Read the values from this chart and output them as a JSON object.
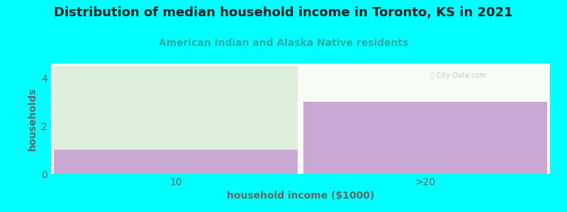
{
  "title": "Distribution of median household income in Toronto, KS in 2021",
  "subtitle": "American Indian and Alaska Native residents",
  "xlabel": "household income ($1000)",
  "ylabel": "households",
  "categories": [
    "10",
    ">20"
  ],
  "bar1_purple": 1,
  "bar1_green": 3.5,
  "bar2_purple": 3,
  "ylim": [
    0,
    4.6
  ],
  "yticks": [
    0,
    2,
    4
  ],
  "background_color": "#00FFFF",
  "plot_bg_color": "#F5FDF5",
  "purple_color": "#C9A8D4",
  "green_color": "#DDEFDA",
  "title_color": "#222222",
  "subtitle_color": "#33AAAA",
  "axis_label_color": "#666666",
  "tick_color": "#666666",
  "grid_color": "#FFFFFF",
  "title_fontsize": 13,
  "subtitle_fontsize": 10,
  "label_fontsize": 10
}
